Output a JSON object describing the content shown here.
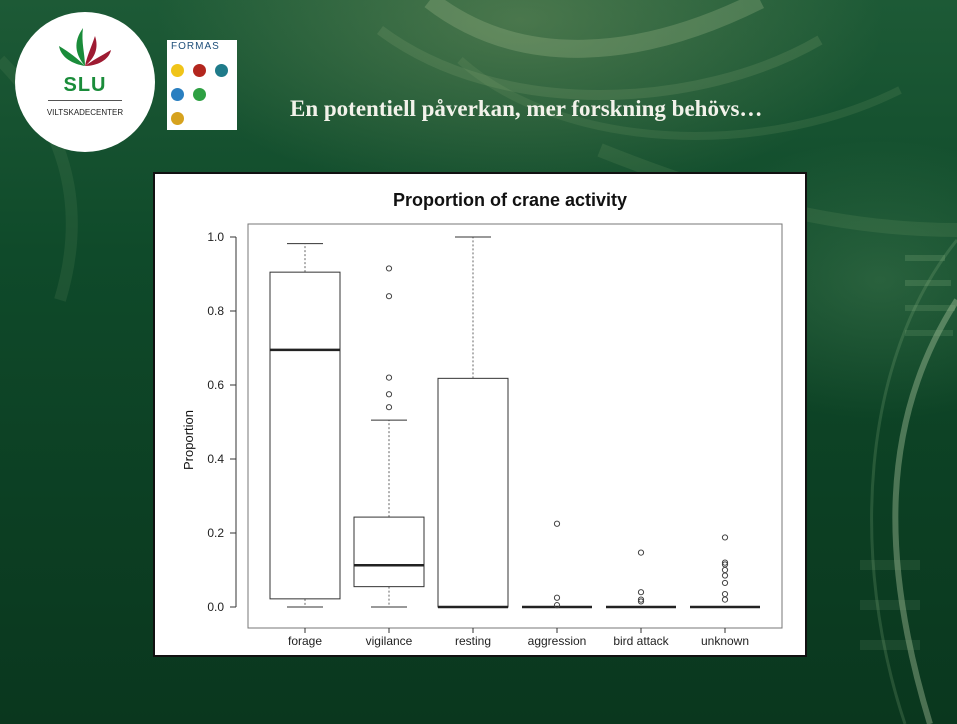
{
  "slide": {
    "title": "En potentiell påverkan, mer forskning behövs…"
  },
  "logos": {
    "slu": {
      "wordmark": "SLU",
      "subtitle": "VILTSKADECENTER",
      "color": "#1a8c3a"
    },
    "formas": {
      "wordmark": "FORMAS",
      "dot_colors": [
        "#f0c419",
        "#b3261e",
        "#1f7b8a",
        "#2a7fc0",
        "#2ea043",
        "#d6a21e"
      ]
    }
  },
  "chart_data": {
    "type": "box",
    "title": "Proportion of crane activity",
    "ylabel": "Proportion",
    "xlabel": "",
    "ylim": [
      0,
      1
    ],
    "yticks": [
      "0.0",
      "0.2",
      "0.4",
      "0.6",
      "0.8",
      "1.0"
    ],
    "grid": false,
    "categories": [
      "forage",
      "vigilance",
      "resting",
      "aggression",
      "bird attack",
      "unknown"
    ],
    "boxes": [
      {
        "name": "forage",
        "whisker_low": 0.0,
        "q1": 0.022,
        "median": 0.695,
        "q3": 0.905,
        "whisker_high": 0.982,
        "outliers": []
      },
      {
        "name": "vigilance",
        "whisker_low": 0.0,
        "q1": 0.055,
        "median": 0.113,
        "q3": 0.243,
        "whisker_high": 0.505,
        "outliers": [
          0.54,
          0.575,
          0.62,
          0.84,
          0.915
        ]
      },
      {
        "name": "resting",
        "whisker_low": 0.0,
        "q1": 0.0,
        "median": 0.0,
        "q3": 0.618,
        "whisker_high": 1.0,
        "outliers": []
      },
      {
        "name": "aggression",
        "whisker_low": 0.0,
        "q1": 0.0,
        "median": 0.0,
        "q3": 0.0,
        "whisker_high": 0.0,
        "outliers": [
          0.005,
          0.025,
          0.225
        ]
      },
      {
        "name": "bird attack",
        "whisker_low": 0.0,
        "q1": 0.0,
        "median": 0.0,
        "q3": 0.0,
        "whisker_high": 0.0,
        "outliers": [
          0.015,
          0.02,
          0.04,
          0.147
        ]
      },
      {
        "name": "unknown",
        "whisker_low": 0.0,
        "q1": 0.0,
        "median": 0.0,
        "q3": 0.0,
        "whisker_high": 0.0,
        "outliers": [
          0.02,
          0.035,
          0.065,
          0.085,
          0.1,
          0.115,
          0.12,
          0.188
        ]
      }
    ]
  }
}
